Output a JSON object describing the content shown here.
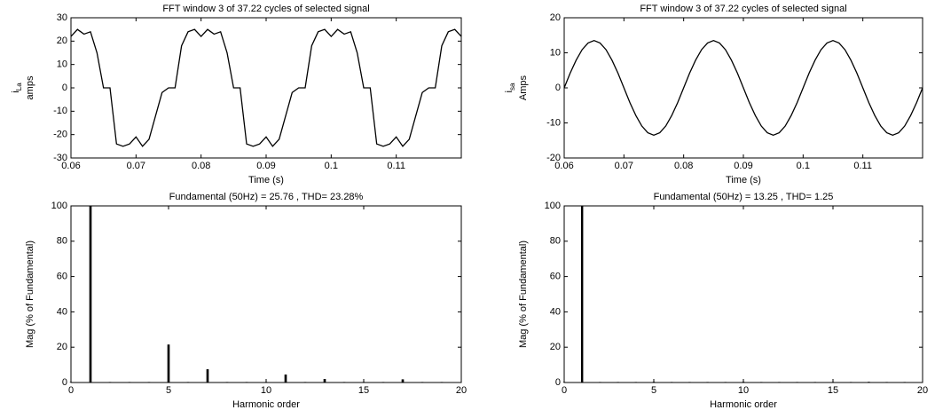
{
  "chart_data": [
    {
      "type": "line",
      "title": "FFT window 3 of 37.22 cycles of selected signal",
      "xlabel": "Time (s)",
      "ylabel": {
        "symbol": "i",
        "subscript": "La",
        "unit": "amps"
      },
      "xlim": [
        0.06,
        0.12
      ],
      "xticks": [
        0.06,
        0.07,
        0.08,
        0.09,
        0.1,
        0.11
      ],
      "ylim": [
        -30,
        30
      ],
      "yticks": [
        -30,
        -20,
        -10,
        0,
        10,
        20,
        30
      ],
      "series": [
        {
          "color": "#000000",
          "x": [
            0.06,
            0.061,
            0.062,
            0.063,
            0.064,
            0.065,
            0.066,
            0.067,
            0.068,
            0.069,
            0.07,
            0.071,
            0.072,
            0.073,
            0.074,
            0.075,
            0.076,
            0.077,
            0.078,
            0.079,
            0.08,
            0.081,
            0.082,
            0.083,
            0.084,
            0.085,
            0.086,
            0.087,
            0.088,
            0.089,
            0.09,
            0.091,
            0.092,
            0.093,
            0.094,
            0.095,
            0.096,
            0.097,
            0.098,
            0.099,
            0.1,
            0.101,
            0.102,
            0.103,
            0.104,
            0.105,
            0.106,
            0.107,
            0.108,
            0.109,
            0.11,
            0.111,
            0.112,
            0.113,
            0.114,
            0.115,
            0.116,
            0.117,
            0.118,
            0.119,
            0.12
          ],
          "values": [
            22,
            25,
            23,
            24,
            15,
            0,
            0,
            -24,
            -25,
            -24,
            -21,
            -25,
            -22,
            -12,
            -2,
            0,
            0,
            18,
            24,
            25,
            22,
            25,
            23,
            24,
            15,
            0,
            0,
            -24,
            -25,
            -24,
            -21,
            -25,
            -22,
            -12,
            -2,
            0,
            0,
            18,
            24,
            25,
            22,
            25,
            23,
            24,
            15,
            0,
            0,
            -24,
            -25,
            -24,
            -21,
            -25,
            -22,
            -12,
            -2,
            0,
            0,
            18,
            24,
            25,
            22
          ]
        }
      ]
    },
    {
      "type": "line",
      "title": "FFT window 3 of 37.22 cycles of selected signal",
      "xlabel": "Time (s)",
      "ylabel": {
        "symbol": "i",
        "subscript": "sa",
        "unit": "Amps"
      },
      "xlim": [
        0.06,
        0.12
      ],
      "xticks": [
        0.06,
        0.07,
        0.08,
        0.09,
        0.1,
        0.11
      ],
      "ylim": [
        -20,
        20
      ],
      "yticks": [
        -20,
        -10,
        0,
        10,
        20
      ],
      "series": [
        {
          "color": "#000000",
          "x": [
            0.06,
            0.061,
            0.062,
            0.063,
            0.064,
            0.065,
            0.066,
            0.067,
            0.068,
            0.069,
            0.07,
            0.071,
            0.072,
            0.073,
            0.074,
            0.075,
            0.076,
            0.077,
            0.078,
            0.079,
            0.08,
            0.081,
            0.082,
            0.083,
            0.084,
            0.085,
            0.086,
            0.087,
            0.088,
            0.089,
            0.09,
            0.091,
            0.092,
            0.093,
            0.094,
            0.095,
            0.096,
            0.097,
            0.098,
            0.099,
            0.1,
            0.101,
            0.102,
            0.103,
            0.104,
            0.105,
            0.106,
            0.107,
            0.108,
            0.109,
            0.11,
            0.111,
            0.112,
            0.113,
            0.114,
            0.115,
            0.116,
            0.117,
            0.118,
            0.119,
            0.12
          ],
          "values": [
            0,
            4.2,
            7.9,
            10.9,
            12.8,
            13.5,
            12.8,
            10.9,
            7.9,
            4.2,
            0,
            -4.2,
            -7.9,
            -10.9,
            -12.8,
            -13.5,
            -12.8,
            -10.9,
            -7.9,
            -4.2,
            0,
            4.2,
            7.9,
            10.9,
            12.8,
            13.5,
            12.8,
            10.9,
            7.9,
            4.2,
            0,
            -4.2,
            -7.9,
            -10.9,
            -12.8,
            -13.5,
            -12.8,
            -10.9,
            -7.9,
            -4.2,
            0,
            4.2,
            7.9,
            10.9,
            12.8,
            13.5,
            12.8,
            10.9,
            7.9,
            4.2,
            0,
            -4.2,
            -7.9,
            -10.9,
            -12.8,
            -13.5,
            -12.8,
            -10.9,
            -7.9,
            -4.2,
            0
          ]
        }
      ]
    },
    {
      "type": "bar",
      "title": "Fundamental (50Hz) = 25.76 , THD= 23.28%",
      "xlabel": "Harmonic order",
      "ylabel": {
        "unit": "Mag (% of Fundamental)"
      },
      "xlim": [
        0,
        20
      ],
      "xticks": [
        0,
        5,
        10,
        15,
        20
      ],
      "ylim": [
        0,
        100
      ],
      "yticks": [
        0,
        20,
        40,
        60,
        80,
        100
      ],
      "series": [
        {
          "color": "#000000",
          "x": [
            0,
            1,
            2,
            3,
            4,
            5,
            6,
            7,
            8,
            9,
            10,
            11,
            12,
            13,
            14,
            15,
            16,
            17,
            18,
            19
          ],
          "values": [
            0.3,
            100,
            0.3,
            0.3,
            0.3,
            21.5,
            0.3,
            7.5,
            0.3,
            0.3,
            0.3,
            4.5,
            0.3,
            2,
            0.3,
            0.3,
            0.3,
            1.8,
            0.3,
            0.3
          ]
        }
      ]
    },
    {
      "type": "bar",
      "title": "Fundamental (50Hz) = 13.25 , THD= 1.25",
      "xlabel": "Harmonic order",
      "ylabel": {
        "unit": "Mag (% of Fundamental)"
      },
      "xlim": [
        0,
        20
      ],
      "xticks": [
        0,
        5,
        10,
        15,
        20
      ],
      "ylim": [
        0,
        100
      ],
      "yticks": [
        0,
        20,
        40,
        60,
        80,
        100
      ],
      "series": [
        {
          "color": "#000000",
          "x": [
            0,
            1,
            2,
            3,
            4,
            5,
            6,
            7,
            8,
            9,
            10,
            11,
            12,
            13,
            14,
            15,
            16,
            17,
            18,
            19
          ],
          "values": [
            0.3,
            100,
            0.3,
            0.3,
            0.3,
            0.4,
            0.3,
            0.3,
            0.3,
            0.3,
            0.4,
            0.3,
            0.3,
            0.3,
            0.3,
            0.3,
            0.3,
            0.4,
            0.3,
            0.3
          ]
        }
      ]
    }
  ]
}
